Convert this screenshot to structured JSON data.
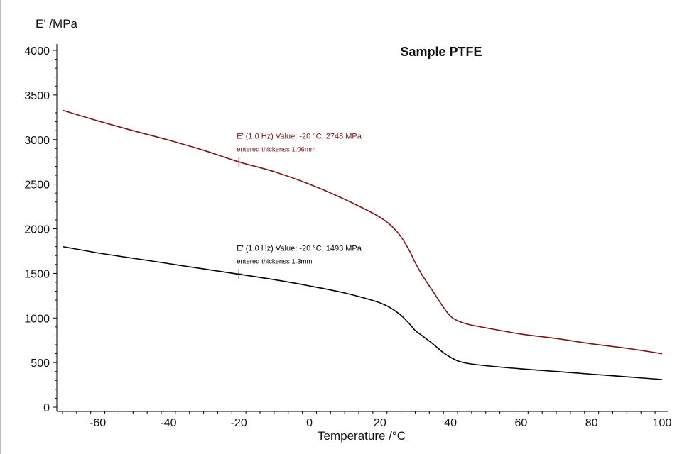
{
  "colors": {
    "series_red": "#7b1416",
    "series_black": "#000000",
    "axis": "#000000",
    "left_border": "#bdbdbd"
  },
  "chart_data": {
    "type": "line",
    "title": "Sample PTFE",
    "xlabel": "Temperature /°C",
    "ylabel": "E' /MPa",
    "xlim": [
      -70,
      100
    ],
    "ylim": [
      0,
      4000
    ],
    "xticks": [
      -60,
      -40,
      -20,
      0,
      20,
      40,
      60,
      80,
      100
    ],
    "yticks": [
      0,
      500,
      1000,
      1500,
      2000,
      2500,
      3000,
      3500,
      4000
    ],
    "grid": false,
    "series": [
      {
        "name": "entered thickenss 1.06mm",
        "color": "#7b1416",
        "x": [
          -70,
          -60,
          -50,
          -40,
          -30,
          -20,
          -10,
          0,
          10,
          20,
          25,
          28,
          30,
          32,
          35,
          38,
          40,
          42,
          45,
          50,
          60,
          70,
          80,
          90,
          100
        ],
        "values": [
          3330,
          3210,
          3100,
          2995,
          2880,
          2750,
          2640,
          2500,
          2330,
          2130,
          1960,
          1780,
          1620,
          1480,
          1300,
          1120,
          1020,
          970,
          930,
          890,
          820,
          770,
          710,
          660,
          600
        ]
      },
      {
        "name": "entered thickenss 1.3mm",
        "color": "#000000",
        "x": [
          -70,
          -60,
          -50,
          -40,
          -30,
          -20,
          -10,
          0,
          10,
          20,
          25,
          28,
          30,
          32,
          35,
          38,
          40,
          42,
          45,
          50,
          60,
          70,
          80,
          90,
          100
        ],
        "values": [
          1800,
          1730,
          1670,
          1610,
          1550,
          1490,
          1430,
          1360,
          1280,
          1170,
          1060,
          950,
          860,
          800,
          710,
          610,
          560,
          520,
          490,
          465,
          430,
          400,
          370,
          340,
          310
        ]
      }
    ],
    "annotations": [
      {
        "series": 0,
        "x": -20,
        "y": 2748,
        "text": "E' (1.0 Hz) Value: -20 °C, 2748 MPa",
        "subtext": "entered thickenss 1.06mm",
        "color": "#7b1416"
      },
      {
        "series": 1,
        "x": -20,
        "y": 1493,
        "text": "E' (1.0 Hz) Value: -20 °C, 1493 MPa",
        "subtext": "entered thickenss 1.3mm",
        "color": "#000000"
      }
    ]
  }
}
